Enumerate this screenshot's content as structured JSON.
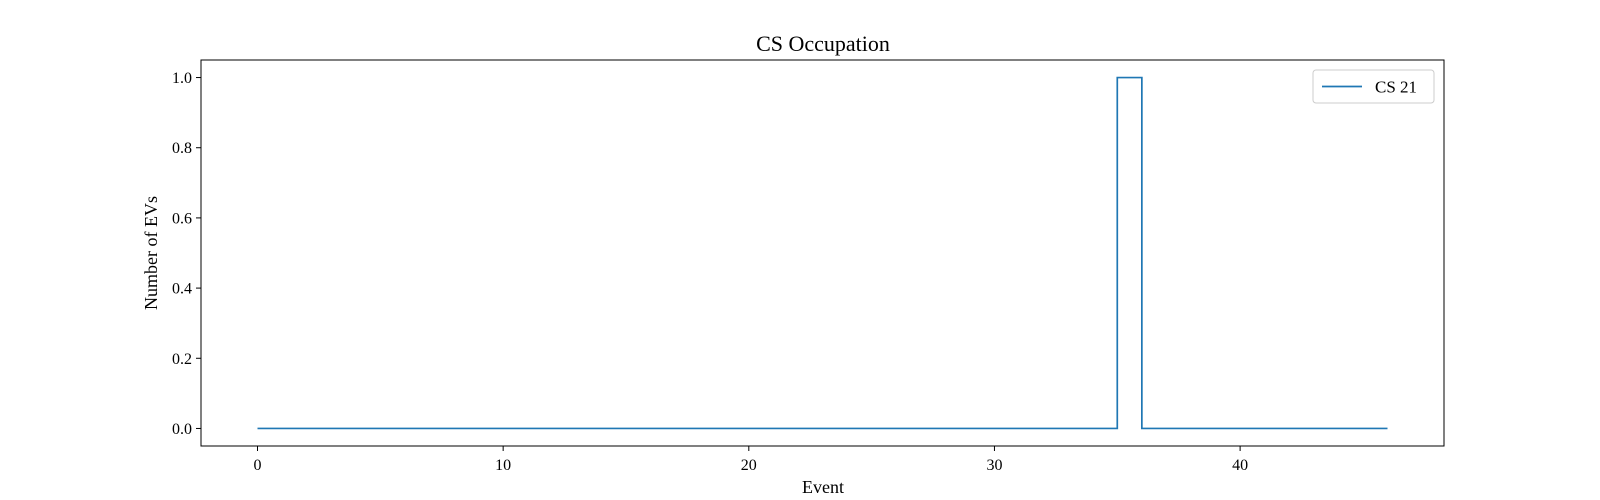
{
  "chart_data": {
    "type": "line",
    "step": "post",
    "title": "CS Occupation",
    "xlabel": "Event",
    "ylabel": "Number of EVs",
    "xlim": [
      -2.3,
      48.3
    ],
    "ylim": [
      -0.05,
      1.05
    ],
    "xticks": [
      0,
      10,
      20,
      30,
      40
    ],
    "xtick_labels": [
      "0",
      "10",
      "20",
      "30",
      "40"
    ],
    "yticks": [
      0.0,
      0.2,
      0.4,
      0.6,
      0.8,
      1.0
    ],
    "ytick_labels": [
      "0.0",
      "0.2",
      "0.4",
      "0.6",
      "0.8",
      "1.0"
    ],
    "grid": false,
    "legend_position": "upper right",
    "series": [
      {
        "name": "CS 21",
        "color": "#1f77b4",
        "x": [
          0,
          35,
          36,
          46
        ],
        "y": [
          0,
          1,
          0,
          0
        ]
      }
    ]
  }
}
